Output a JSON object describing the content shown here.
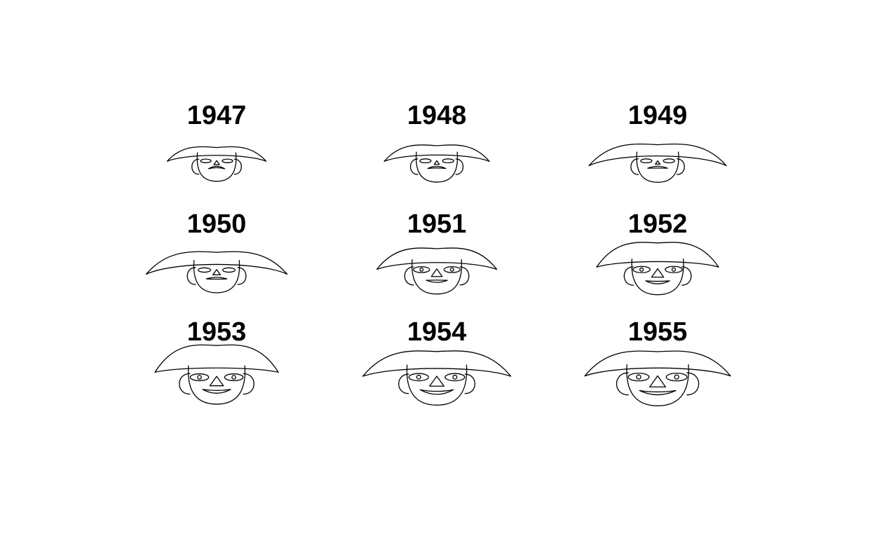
{
  "chart_data": {
    "type": "chernoff_faces",
    "layout": {
      "rows": 3,
      "cols": 3
    },
    "faces": [
      {
        "label": "1947",
        "face_size": 0.2,
        "hat_width": 0.25,
        "hat_height": 0.18,
        "ear_size": 0.22,
        "eye_size": 0.15,
        "nose_size": 0.18,
        "smile": 0.05,
        "mouth_width": 0.22
      },
      {
        "label": "1948",
        "face_size": 0.28,
        "hat_width": 0.34,
        "hat_height": 0.24,
        "ear_size": 0.26,
        "eye_size": 0.2,
        "nose_size": 0.15,
        "smile": 0.12,
        "mouth_width": 0.28
      },
      {
        "label": "1949",
        "face_size": 0.3,
        "hat_width": 0.8,
        "hat_height": 0.28,
        "ear_size": 0.28,
        "eye_size": 0.2,
        "nose_size": 0.12,
        "smile": 0.18,
        "mouth_width": 0.34
      },
      {
        "label": "1950",
        "face_size": 0.42,
        "hat_width": 0.85,
        "hat_height": 0.32,
        "ear_size": 0.38,
        "eye_size": 0.28,
        "nose_size": 0.3,
        "smile": 0.26,
        "mouth_width": 0.36
      },
      {
        "label": "1951",
        "face_size": 0.55,
        "hat_width": 0.55,
        "hat_height": 0.45,
        "ear_size": 0.48,
        "eye_size": 0.55,
        "nose_size": 0.52,
        "smile": 0.52,
        "mouth_width": 0.38
      },
      {
        "label": "1952",
        "face_size": 0.62,
        "hat_width": 0.58,
        "hat_height": 0.7,
        "ear_size": 0.52,
        "eye_size": 0.62,
        "nose_size": 0.6,
        "smile": 0.66,
        "mouth_width": 0.48
      },
      {
        "label": "1953",
        "face_size": 0.78,
        "hat_width": 0.6,
        "hat_height": 0.9,
        "ear_size": 0.7,
        "eye_size": 0.72,
        "nose_size": 0.7,
        "smile": 0.78,
        "mouth_width": 0.62
      },
      {
        "label": "1954",
        "face_size": 0.88,
        "hat_width": 0.95,
        "hat_height": 0.58,
        "ear_size": 0.6,
        "eye_size": 0.8,
        "nose_size": 0.75,
        "smile": 0.9,
        "mouth_width": 0.8
      },
      {
        "label": "1955",
        "face_size": 0.95,
        "hat_width": 0.92,
        "hat_height": 0.55,
        "ear_size": 0.85,
        "eye_size": 0.88,
        "nose_size": 0.85,
        "smile": 0.85,
        "mouth_width": 0.9
      }
    ]
  }
}
